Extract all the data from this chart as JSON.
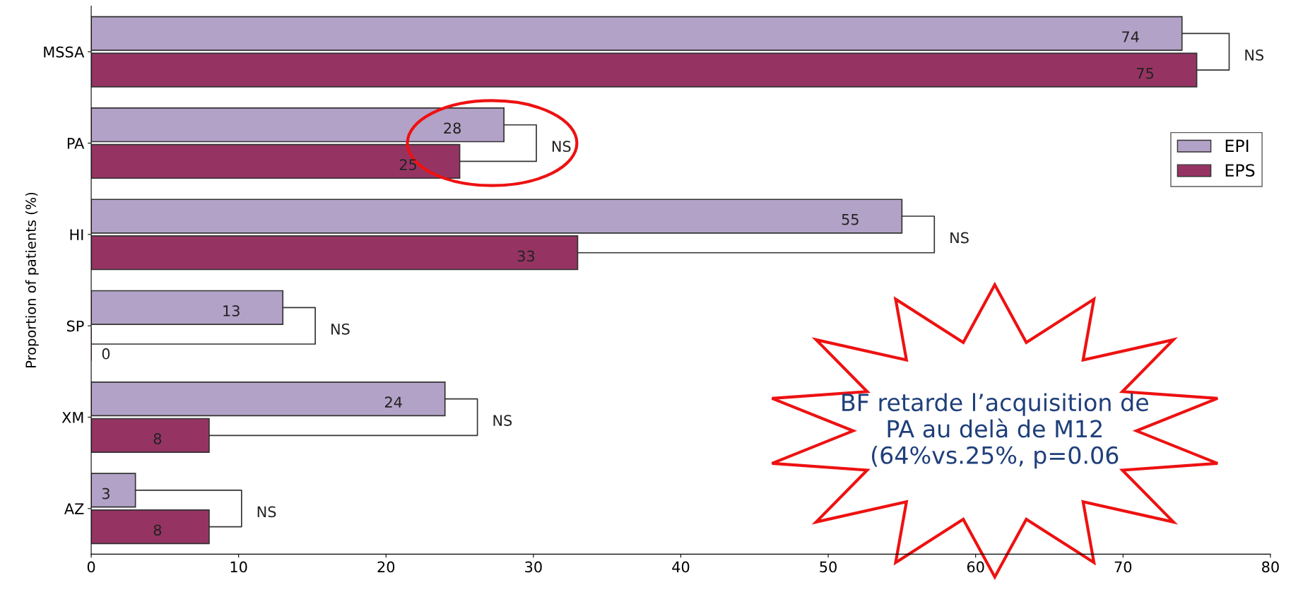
{
  "chart_data": {
    "type": "bar",
    "orientation": "horizontal",
    "ylabel": "Proportion of patients (%)",
    "categories": [
      "MSSA",
      "PA",
      "HI",
      "SP",
      "XM",
      "AZ"
    ],
    "series": [
      {
        "name": "EPI",
        "color": "#b3a2c7",
        "values": [
          74,
          28,
          55,
          13,
          24,
          3
        ]
      },
      {
        "name": "EPS",
        "color": "#953462",
        "values": [
          75,
          25,
          33,
          0,
          8,
          8
        ]
      }
    ],
    "xlim": [
      0,
      80
    ],
    "xticks": [
      0,
      10,
      20,
      30,
      40,
      50,
      60,
      70,
      80
    ],
    "data_labels": true,
    "legend": "right",
    "grid": false,
    "annotations": [
      "NS",
      "NS",
      "NS",
      "NS",
      "NS",
      "NS",
      "BF retarde l’acquisition de PA au delà de M12 (64%vs.25%, p=0.06"
    ]
  }
}
